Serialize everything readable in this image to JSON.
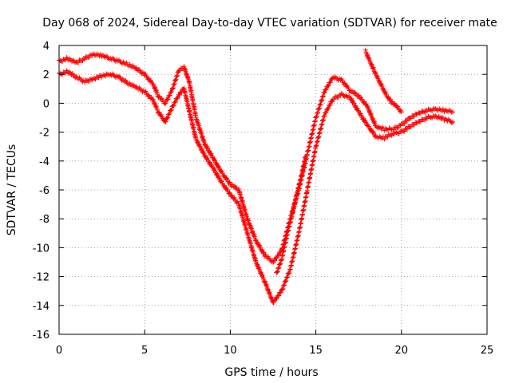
{
  "chart_data": {
    "type": "scatter",
    "title": "Day 068 of 2024, Sidereal Day-to-day VTEC variation (SDTVAR) for receiver mate",
    "xlabel": "GPS time / hours",
    "ylabel": "SDTVAR / TECUs",
    "xlim": [
      0,
      25
    ],
    "ylim": [
      -16,
      4
    ],
    "xticks": [
      0,
      5,
      10,
      15,
      20,
      25
    ],
    "yticks": [
      4,
      2,
      0,
      -2,
      -4,
      -6,
      -8,
      -10,
      -12,
      -14,
      -16
    ],
    "grid": true,
    "marker": "+",
    "color": "#ff0000",
    "series": [
      {
        "name": "band-upper",
        "x": [
          0,
          0.5,
          1,
          1.5,
          2,
          2.5,
          3,
          3.5,
          4,
          4.5,
          5,
          5.5,
          5.8,
          6.2,
          6.6,
          7,
          7.3,
          7.6,
          8,
          8.5,
          9,
          9.5,
          10,
          10.5,
          11,
          11.5,
          12,
          12.5,
          13,
          13.5,
          14,
          14.5,
          15,
          15.5,
          16,
          16.5,
          17,
          17.5,
          18,
          18.5,
          19,
          19.5,
          20,
          20.5,
          21,
          21.5,
          22,
          22.5,
          23
        ],
        "y": [
          2.9,
          3.1,
          2.8,
          3.1,
          3.4,
          3.3,
          3.1,
          2.9,
          2.7,
          2.4,
          2.0,
          1.3,
          0.5,
          0.0,
          0.9,
          2.3,
          2.5,
          1.5,
          -1.0,
          -2.8,
          -3.8,
          -4.8,
          -5.6,
          -6.0,
          -8.0,
          -9.5,
          -10.5,
          -11.0,
          -10.2,
          -8.0,
          -6.0,
          -3.5,
          -1.0,
          0.8,
          1.8,
          1.6,
          0.9,
          0.5,
          -0.2,
          -1.6,
          -1.8,
          -1.8,
          -1.5,
          -1.0,
          -0.7,
          -0.5,
          -0.4,
          -0.5,
          -0.6
        ]
      },
      {
        "name": "band-lower",
        "x": [
          0,
          0.5,
          1,
          1.5,
          2,
          2.5,
          3,
          3.5,
          4,
          4.5,
          5,
          5.5,
          5.8,
          6.2,
          6.6,
          7,
          7.3,
          7.6,
          8,
          8.5,
          9,
          9.5,
          10,
          10.5,
          11,
          11.5,
          12,
          12.5,
          13,
          13.5,
          14,
          14.5,
          15,
          15.5,
          16,
          16.5,
          17,
          17.5,
          18,
          18.5,
          19,
          19.5,
          20,
          20.5,
          21,
          21.5,
          22,
          22.5,
          23
        ],
        "y": [
          2.0,
          2.2,
          1.8,
          1.5,
          1.7,
          1.9,
          2.0,
          1.8,
          1.4,
          1.1,
          0.8,
          0.2,
          -0.6,
          -1.3,
          -0.3,
          0.6,
          1.0,
          -0.5,
          -2.5,
          -3.6,
          -4.5,
          -5.5,
          -6.3,
          -7.0,
          -9.0,
          -11.0,
          -12.3,
          -13.8,
          -13.0,
          -11.5,
          -9.0,
          -6.0,
          -3.0,
          -0.8,
          0.3,
          0.6,
          0.4,
          -0.6,
          -1.5,
          -2.3,
          -2.4,
          -2.1,
          -2.0,
          -1.6,
          -1.3,
          -1.0,
          -0.9,
          -1.1,
          -1.3
        ]
      },
      {
        "name": "rising-branch",
        "x": [
          12.7,
          13.0,
          13.3,
          13.6,
          13.9,
          14.2,
          14.4
        ],
        "y": [
          -11.8,
          -10.8,
          -9.2,
          -7.8,
          -6.2,
          -4.8,
          -3.7
        ]
      },
      {
        "name": "high-segment",
        "x": [
          17.9,
          18.2,
          18.5,
          18.8,
          19.1,
          19.4,
          19.7,
          20.0
        ],
        "y": [
          3.6,
          2.8,
          2.0,
          1.3,
          0.6,
          0.1,
          -0.2,
          -0.6
        ]
      }
    ]
  }
}
